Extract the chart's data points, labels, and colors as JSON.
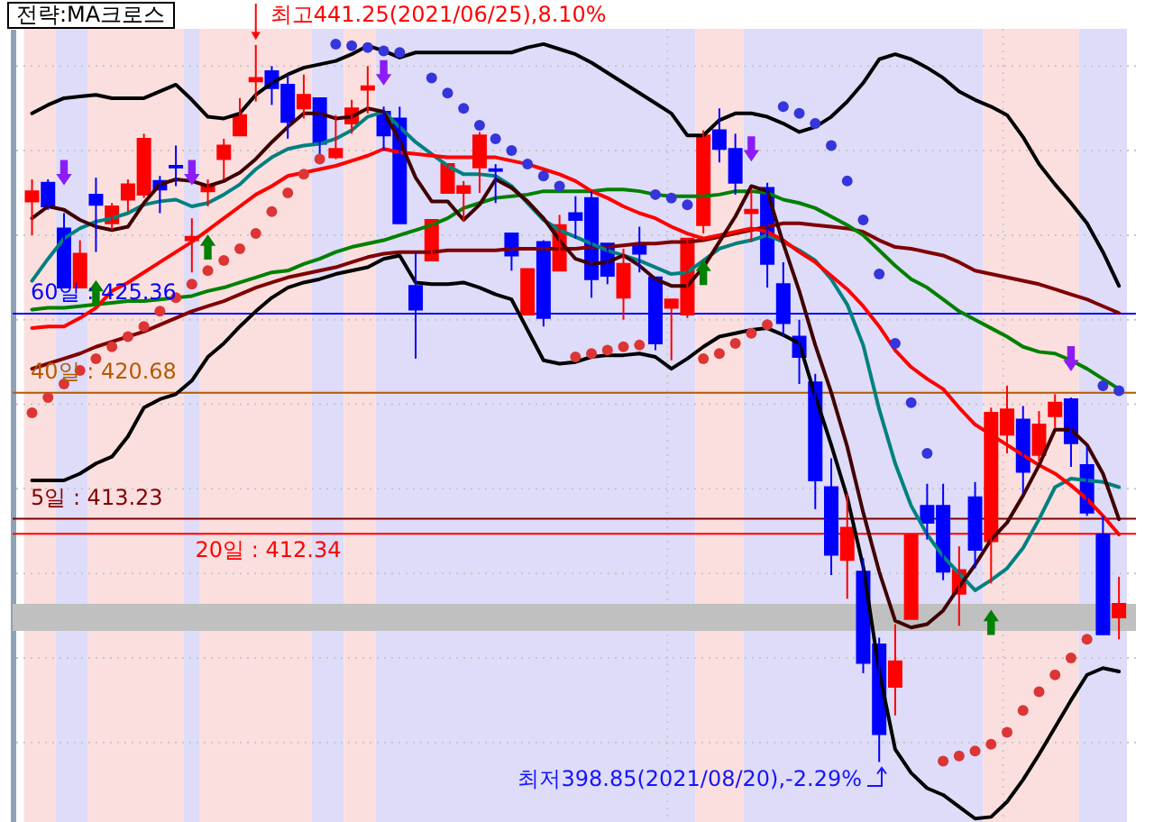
{
  "chart_data": {
    "type": "candlestick",
    "title": "전략:MA크로스",
    "categories": [
      null,
      null,
      null,
      null,
      null,
      null,
      null,
      null,
      null,
      null,
      null,
      null,
      null,
      null,
      null,
      null,
      null,
      null,
      null,
      null,
      null,
      null,
      null,
      null,
      null,
      null,
      null,
      null,
      null,
      null,
      null,
      null,
      null,
      null,
      null,
      null,
      null,
      null,
      null,
      null,
      null,
      null,
      null,
      null,
      null,
      null,
      null,
      null,
      null,
      null,
      null,
      null,
      null,
      null,
      null,
      null,
      null,
      null,
      null,
      null,
      null,
      null,
      null,
      null,
      null,
      null,
      null,
      null,
      null
    ],
    "ohlc": [
      [
        432.0,
        433.3,
        430.0,
        432.6
      ],
      [
        433.1,
        433.3,
        431.5,
        431.7
      ],
      [
        430.4,
        431.3,
        426.9,
        426.9
      ],
      [
        426.9,
        429.7,
        426.9,
        428.9
      ],
      [
        432.4,
        433.4,
        429.0,
        431.8
      ],
      [
        430.7,
        431.9,
        430.3,
        431.7
      ],
      [
        432.1,
        433.3,
        431.4,
        433.0
      ],
      [
        432.4,
        436.0,
        432.2,
        435.7
      ],
      [
        433.2,
        433.5,
        431.3,
        432.7
      ],
      [
        434.1,
        435.3,
        432.9,
        434.0
      ],
      [
        429.7,
        431.0,
        427.8,
        429.9
      ],
      [
        432.6,
        433.3,
        431.7,
        432.9
      ],
      [
        434.5,
        435.7,
        433.3,
        435.3
      ],
      [
        435.9,
        438.1,
        435.9,
        437.1
      ],
      [
        439.1,
        441.25,
        437.9,
        439.3
      ],
      [
        439.7,
        440.0,
        437.7,
        438.7
      ],
      [
        438.9,
        439.5,
        435.7,
        436.7
      ],
      [
        437.5,
        439.5,
        436.9,
        438.3
      ],
      [
        438.1,
        438.1,
        434.8,
        435.4
      ],
      [
        434.6,
        437.1,
        434.5,
        435.1
      ],
      [
        436.6,
        438.0,
        436.0,
        437.5
      ],
      [
        438.6,
        440.0,
        437.2,
        438.8
      ],
      [
        437.3,
        437.6,
        435.0,
        435.9
      ],
      [
        436.9,
        437.6,
        430.7,
        430.7
      ],
      [
        427.0,
        429.0,
        422.7,
        425.6
      ],
      [
        428.5,
        430.9,
        428.5,
        430.9
      ],
      [
        432.5,
        434.2,
        432.5,
        434.2
      ],
      [
        432.5,
        433.2,
        430.8,
        432.9
      ],
      [
        434.0,
        436.1,
        432.5,
        435.9
      ],
      [
        433.9,
        434.2,
        431.9,
        433.8
      ],
      [
        430.1,
        430.1,
        427.9,
        428.8
      ],
      [
        425.3,
        428.0,
        425.3,
        428.0
      ],
      [
        429.6,
        429.7,
        424.6,
        425.1
      ],
      [
        427.9,
        431.2,
        427.9,
        430.6
      ],
      [
        431.3,
        432.3,
        429.8,
        430.9
      ],
      [
        432.2,
        432.6,
        426.3,
        427.4
      ],
      [
        429.5,
        429.5,
        427.1,
        427.6
      ],
      [
        426.3,
        429.2,
        425.0,
        428.3
      ],
      [
        429.5,
        430.5,
        427.8,
        428.9
      ],
      [
        427.5,
        427.5,
        423.2,
        423.6
      ],
      [
        425.7,
        426.2,
        422.6,
        426.2
      ],
      [
        425.3,
        429.8,
        425.1,
        429.8
      ],
      [
        430.6,
        436.2,
        430.1,
        435.9
      ],
      [
        436.2,
        437.5,
        434.3,
        435.1
      ],
      [
        435.1,
        436.0,
        432.4,
        433.1
      ],
      [
        431.3,
        432.7,
        429.6,
        431.5
      ],
      [
        432.8,
        433.1,
        426.9,
        428.3
      ],
      [
        427.1,
        428.4,
        424.0,
        424.8
      ],
      [
        424.0,
        425.0,
        421.2,
        422.8
      ],
      [
        421.3,
        421.8,
        413.8,
        415.5
      ],
      [
        415.1,
        416.8,
        409.9,
        411.1
      ],
      [
        410.8,
        414.7,
        408.5,
        412.7
      ],
      [
        410.1,
        410.9,
        404.1,
        404.7
      ],
      [
        405.8,
        406.2,
        398.85,
        400.5
      ],
      [
        403.3,
        407.0,
        401.6,
        404.8
      ],
      [
        407.3,
        412.3,
        407.3,
        412.3
      ],
      [
        414.0,
        415.3,
        412.0,
        413.0
      ],
      [
        414.0,
        415.3,
        409.6,
        410.1
      ],
      [
        408.8,
        411.6,
        406.9,
        410.2
      ],
      [
        414.5,
        415.4,
        410.3,
        411.4
      ],
      [
        411.9,
        419.8,
        409.4,
        419.5
      ],
      [
        418.2,
        421.1,
        417.1,
        419.7
      ],
      [
        419.1,
        419.9,
        414.7,
        416.0
      ],
      [
        417.0,
        419.6,
        416.6,
        418.8
      ],
      [
        419.3,
        420.6,
        418.6,
        420.1
      ],
      [
        420.3,
        420.4,
        416.3,
        417.7
      ],
      [
        416.4,
        417.5,
        413.4,
        413.6
      ],
      [
        412.3,
        413.4,
        406.4,
        406.4
      ],
      [
        407.4,
        409.8,
        406.1,
        408.2
      ]
    ],
    "colors": [
      "#ff0000",
      "#0000ff",
      "#0000ff",
      "#ff0000",
      "#0000ff",
      "#ff0000",
      "#ff0000",
      "#ff0000",
      "#0000ff",
      "#0000ff",
      "#ff0000",
      "#ff0000",
      "#ff0000",
      "#ff0000",
      "#ff0000",
      "#0000ff",
      "#0000ff",
      "#ff0000",
      "#0000ff",
      "#ff0000",
      "#ff0000",
      "#ff0000",
      "#0000ff",
      "#0000ff",
      "#0000ff",
      "#ff0000",
      "#ff0000",
      "#ff0000",
      "#ff0000",
      "#0000ff",
      "#0000ff",
      "#ff0000",
      "#0000ff",
      "#ff0000",
      "#0000ff",
      "#0000ff",
      "#0000ff",
      "#ff0000",
      "#0000ff",
      "#0000ff",
      "#ff0000",
      "#ff0000",
      "#ff0000",
      "#0000ff",
      "#0000ff",
      "#ff0000",
      "#0000ff",
      "#0000ff",
      "#0000ff",
      "#0000ff",
      "#0000ff",
      "#ff0000",
      "#0000ff",
      "#0000ff",
      "#ff0000",
      "#ff0000",
      "#0000ff",
      "#0000ff",
      "#ff0000",
      "#0000ff",
      "#ff0000",
      "#ff0000",
      "#0000ff",
      "#ff0000",
      "#ff0000",
      "#0000ff",
      "#0000ff",
      "#0000ff",
      "#ff0000"
    ],
    "series": [
      {
        "type": "line",
        "color": "#000000",
        "values": [
          437.2,
          437.7,
          438.1,
          438.2,
          438.3,
          438.1,
          438.1,
          438.1,
          438.5,
          438.9,
          438.0,
          437.0,
          436.9,
          437.2,
          438.3,
          439.0,
          439.5,
          439.9,
          440.1,
          440.3,
          440.7,
          441.2,
          440.9,
          440.5,
          440.8,
          440.8,
          440.8,
          440.8,
          440.8,
          440.8,
          440.8,
          441.1,
          441.3,
          441.0,
          440.7,
          440.2,
          439.6,
          439.0,
          438.4,
          437.8,
          437.2,
          435.9,
          435.9,
          436.8,
          437.2,
          437.2,
          437.0,
          436.6,
          436.1,
          436.4,
          437.0,
          437.9,
          439.0,
          440.4,
          440.7,
          440.4,
          439.9,
          439.3,
          438.5,
          438.0,
          437.6,
          437.1,
          435.8,
          434.2,
          433.0,
          431.9,
          430.7,
          429.0,
          427.0
        ]
      },
      {
        "type": "line",
        "color": "#000000",
        "values": [
          415.5,
          415.5,
          415.5,
          415.9,
          416.5,
          416.9,
          418.1,
          419.8,
          420.3,
          420.6,
          421.4,
          422.8,
          423.6,
          424.6,
          425.5,
          426.3,
          426.9,
          427.2,
          427.4,
          427.7,
          427.9,
          428.1,
          428.6,
          428.8,
          427.2,
          427.1,
          427.1,
          427.2,
          426.9,
          426.5,
          426.2,
          424.4,
          422.6,
          422.4,
          422.5,
          422.8,
          422.9,
          422.9,
          423.0,
          422.8,
          422.1,
          422.7,
          423.4,
          424.0,
          424.2,
          424.4,
          424.5,
          424.1,
          423.6,
          420.5,
          417.6,
          414.5,
          410.4,
          404.2,
          399.6,
          398.2,
          397.3,
          396.9,
          396.2,
          395.5,
          395.6,
          396.5,
          397.8,
          399.3,
          400.9,
          402.5,
          404.0,
          404.4,
          404.2
        ]
      },
      {
        "type": "line",
        "color": "#800000",
        "values": [
          422.1,
          422.4,
          422.7,
          423.0,
          423.4,
          423.7,
          424.0,
          424.3,
          424.7,
          425.1,
          425.5,
          425.8,
          426.1,
          426.5,
          426.9,
          427.2,
          427.5,
          427.7,
          427.9,
          428.1,
          428.4,
          428.7,
          428.9,
          429.0,
          429.0,
          429.0,
          429.1,
          429.1,
          429.1,
          429.1,
          429.2,
          429.2,
          429.2,
          429.2,
          429.2,
          429.3,
          429.3,
          429.4,
          429.5,
          429.5,
          429.6,
          429.6,
          429.7,
          429.9,
          430.1,
          430.3,
          430.5,
          430.7,
          430.7,
          430.6,
          430.5,
          430.4,
          430.2,
          429.7,
          429.3,
          429.2,
          429.0,
          428.8,
          428.4,
          427.9,
          427.7,
          427.5,
          427.3,
          427.1,
          426.8,
          426.5,
          426.2,
          425.8,
          425.4
        ]
      },
      {
        "type": "line",
        "color": "#008000",
        "values": [
          425.6,
          425.7,
          425.7,
          425.8,
          425.9,
          426.0,
          426.1,
          426.1,
          426.2,
          426.3,
          426.4,
          426.7,
          426.9,
          427.2,
          427.5,
          427.8,
          427.9,
          428.3,
          428.6,
          429.0,
          429.3,
          429.5,
          429.7,
          430.0,
          430.3,
          430.6,
          431.0,
          431.6,
          431.9,
          432.2,
          432.3,
          432.4,
          432.6,
          432.6,
          432.6,
          432.6,
          432.7,
          432.7,
          432.6,
          432.4,
          432.3,
          432.3,
          432.3,
          432.4,
          432.6,
          432.6,
          432.5,
          432.1,
          431.9,
          431.6,
          431.1,
          430.6,
          430.0,
          429.1,
          428.2,
          427.4,
          426.9,
          426.2,
          425.5,
          425.0,
          424.5,
          424.0,
          423.4,
          423.1,
          423.0,
          422.6,
          422.1,
          421.5,
          420.9
        ]
      },
      {
        "type": "line",
        "color": "#008080",
        "values": [
          427.3,
          428.6,
          429.8,
          430.4,
          430.8,
          431.0,
          431.3,
          431.8,
          432.0,
          432.1,
          431.7,
          431.9,
          432.4,
          433.0,
          433.9,
          434.6,
          435.1,
          435.3,
          435.4,
          435.7,
          436.2,
          437.0,
          437.3,
          436.4,
          435.5,
          434.8,
          434.1,
          433.6,
          433.6,
          433.5,
          432.9,
          431.9,
          430.9,
          430.3,
          429.9,
          429.5,
          429.1,
          428.8,
          428.5,
          428.1,
          427.7,
          427.8,
          428.5,
          429.2,
          429.5,
          429.7,
          430.0,
          429.6,
          429.1,
          428.5,
          427.4,
          425.9,
          423.5,
          419.7,
          416.5,
          414.0,
          412.3,
          411.0,
          410.0,
          409.0,
          409.6,
          410.3,
          411.5,
          413.2,
          415.1,
          415.6,
          415.5,
          415.4,
          415.1
        ]
      },
      {
        "type": "line",
        "color": "#ff0000",
        "values": [
          424.5,
          424.6,
          424.6,
          425.1,
          425.7,
          426.7,
          427.2,
          427.8,
          428.4,
          429.0,
          429.6,
          430.3,
          431.0,
          431.7,
          432.4,
          432.9,
          433.5,
          433.7,
          433.9,
          434.1,
          434.4,
          434.7,
          435.1,
          434.9,
          434.8,
          434.7,
          434.6,
          434.6,
          434.6,
          434.6,
          434.4,
          434.2,
          433.9,
          433.6,
          433.2,
          432.6,
          432.2,
          431.7,
          431.3,
          431.0,
          430.5,
          430.1,
          429.8,
          430.0,
          430.2,
          430.4,
          430.2,
          429.7,
          429.0,
          428.4,
          427.6,
          426.8,
          425.8,
          424.6,
          423.2,
          422.2,
          421.5,
          420.9,
          419.8,
          418.8,
          418.2,
          417.6,
          417.0,
          416.4,
          415.9,
          415.2,
          414.4,
          413.4,
          412.3
        ]
      },
      {
        "type": "line",
        "color": "#400000",
        "values": [
          431.0,
          431.7,
          431.5,
          430.9,
          430.5,
          430.3,
          430.5,
          431.9,
          433.0,
          433.3,
          433.2,
          432.9,
          433.2,
          433.7,
          434.5,
          435.5,
          436.4,
          437.2,
          437.2,
          436.9,
          437.0,
          437.5,
          437.3,
          435.6,
          433.4,
          432.0,
          432.0,
          430.9,
          431.8,
          433.3,
          432.8,
          432.0,
          431.0,
          429.7,
          428.6,
          428.3,
          428.4,
          428.8,
          428.2,
          427.4,
          427.0,
          427.0,
          428.1,
          429.6,
          431.1,
          432.9,
          432.6,
          429.5,
          426.7,
          423.5,
          420.7,
          417.5,
          413.6,
          410.1,
          407.2,
          406.8,
          407.0,
          407.8,
          409.2,
          410.5,
          412.0,
          413.0,
          414.6,
          416.4,
          418.5,
          418.5,
          417.6,
          415.9,
          413.2
        ]
      },
      {
        "type": "scatter",
        "color": "#dc3535",
        "marker": "circle",
        "values": [
          419.5,
          420.4,
          421.2,
          422.0,
          422.7,
          423.4,
          424.0,
          424.6,
          425.5,
          426.3,
          427.1,
          427.9,
          428.5,
          429.2,
          430.1,
          431.4,
          432.5,
          433.6,
          434.5,
          null,
          null,
          null,
          null,
          null,
          null,
          null,
          null,
          null,
          null,
          null,
          null,
          null,
          null,
          null,
          422.8,
          423.0,
          423.2,
          423.4,
          423.5,
          null,
          null,
          null,
          422.7,
          423.0,
          423.6,
          424.2,
          424.7,
          null,
          null,
          null,
          null,
          null,
          null,
          null,
          null,
          null,
          null,
          398.9,
          399.2,
          399.5,
          399.9,
          400.6,
          401.9,
          403.0,
          404.0,
          405.0,
          406.1,
          null,
          null
        ]
      },
      {
        "type": "scatter",
        "color": "#3535dc",
        "marker": "circle",
        "values": [
          null,
          null,
          null,
          null,
          null,
          null,
          null,
          null,
          null,
          null,
          null,
          null,
          null,
          null,
          null,
          null,
          null,
          null,
          null,
          441.3,
          441.2,
          441.1,
          440.9,
          440.8,
          null,
          439.3,
          438.4,
          437.5,
          436.5,
          435.7,
          435.0,
          434.2,
          433.5,
          432.9,
          null,
          null,
          null,
          null,
          null,
          432.4,
          432.2,
          431.8,
          null,
          null,
          null,
          null,
          null,
          437.6,
          437.2,
          436.6,
          435.3,
          433.2,
          430.9,
          427.7,
          423.6,
          420.1,
          417.1,
          null,
          null,
          null,
          null,
          null,
          null,
          null,
          null,
          null,
          null,
          421.1,
          420.8
        ]
      },
      {
        "type": "scatter",
        "color": "#8c1cf5",
        "marker": "triangle",
        "values": [
          null,
          null,
          433.7,
          null,
          null,
          null,
          null,
          null,
          null,
          null,
          433.7,
          null,
          null,
          null,
          null,
          null,
          null,
          null,
          null,
          null,
          null,
          null,
          439.6,
          null,
          null,
          null,
          null,
          null,
          null,
          null,
          null,
          null,
          null,
          null,
          null,
          null,
          null,
          null,
          null,
          null,
          null,
          null,
          null,
          null,
          null,
          435.1,
          null,
          null,
          null,
          null,
          null,
          null,
          null,
          null,
          null,
          null,
          null,
          null,
          null,
          null,
          null,
          null,
          null,
          null,
          null,
          422.7,
          null,
          null,
          null
        ]
      },
      {
        "type": "scatter",
        "color": "#008000",
        "marker": "triangle",
        "values": [
          null,
          null,
          null,
          null,
          426.6,
          null,
          null,
          null,
          null,
          null,
          null,
          429.3,
          null,
          null,
          null,
          null,
          null,
          null,
          null,
          null,
          null,
          null,
          null,
          null,
          null,
          null,
          null,
          null,
          null,
          null,
          null,
          null,
          null,
          null,
          null,
          null,
          null,
          null,
          null,
          null,
          null,
          null,
          427.8,
          null,
          null,
          null,
          null,
          null,
          null,
          null,
          null,
          null,
          null,
          null,
          null,
          null,
          null,
          null,
          null,
          null,
          407.1,
          null,
          null,
          null,
          null,
          null,
          null,
          null,
          null
        ]
      }
    ],
    "ylim": [
      395.3,
      442.2
    ],
    "yticks": [
      400,
      405,
      410,
      415,
      420,
      425,
      430,
      435,
      440
    ],
    "tick_labels": false,
    "grid": "y",
    "ref_lines": [
      {
        "axis": "y",
        "value": 425.36,
        "label": "60일 : 425.36",
        "color": "#0000ff"
      },
      {
        "axis": "y",
        "value": 420.68,
        "label": "40일 : 420.68",
        "color": "#b45a00"
      },
      {
        "axis": "y",
        "value": 413.23,
        "label": "5일 : 413.23",
        "color": "#800000"
      },
      {
        "axis": "y",
        "value": 412.34,
        "label": "20일 : 412.34",
        "color": "#ff0000"
      }
    ],
    "bands": [
      {
        "axis": "y",
        "from": 406.6,
        "to": 408.2,
        "color": "#c0c0c0"
      }
    ],
    "annotations": [
      {
        "text": "최고441.25(2021/06/25),8.10%",
        "y": 441.25
      },
      "최저398.85(2021/08/20),-2.29%"
    ]
  }
}
